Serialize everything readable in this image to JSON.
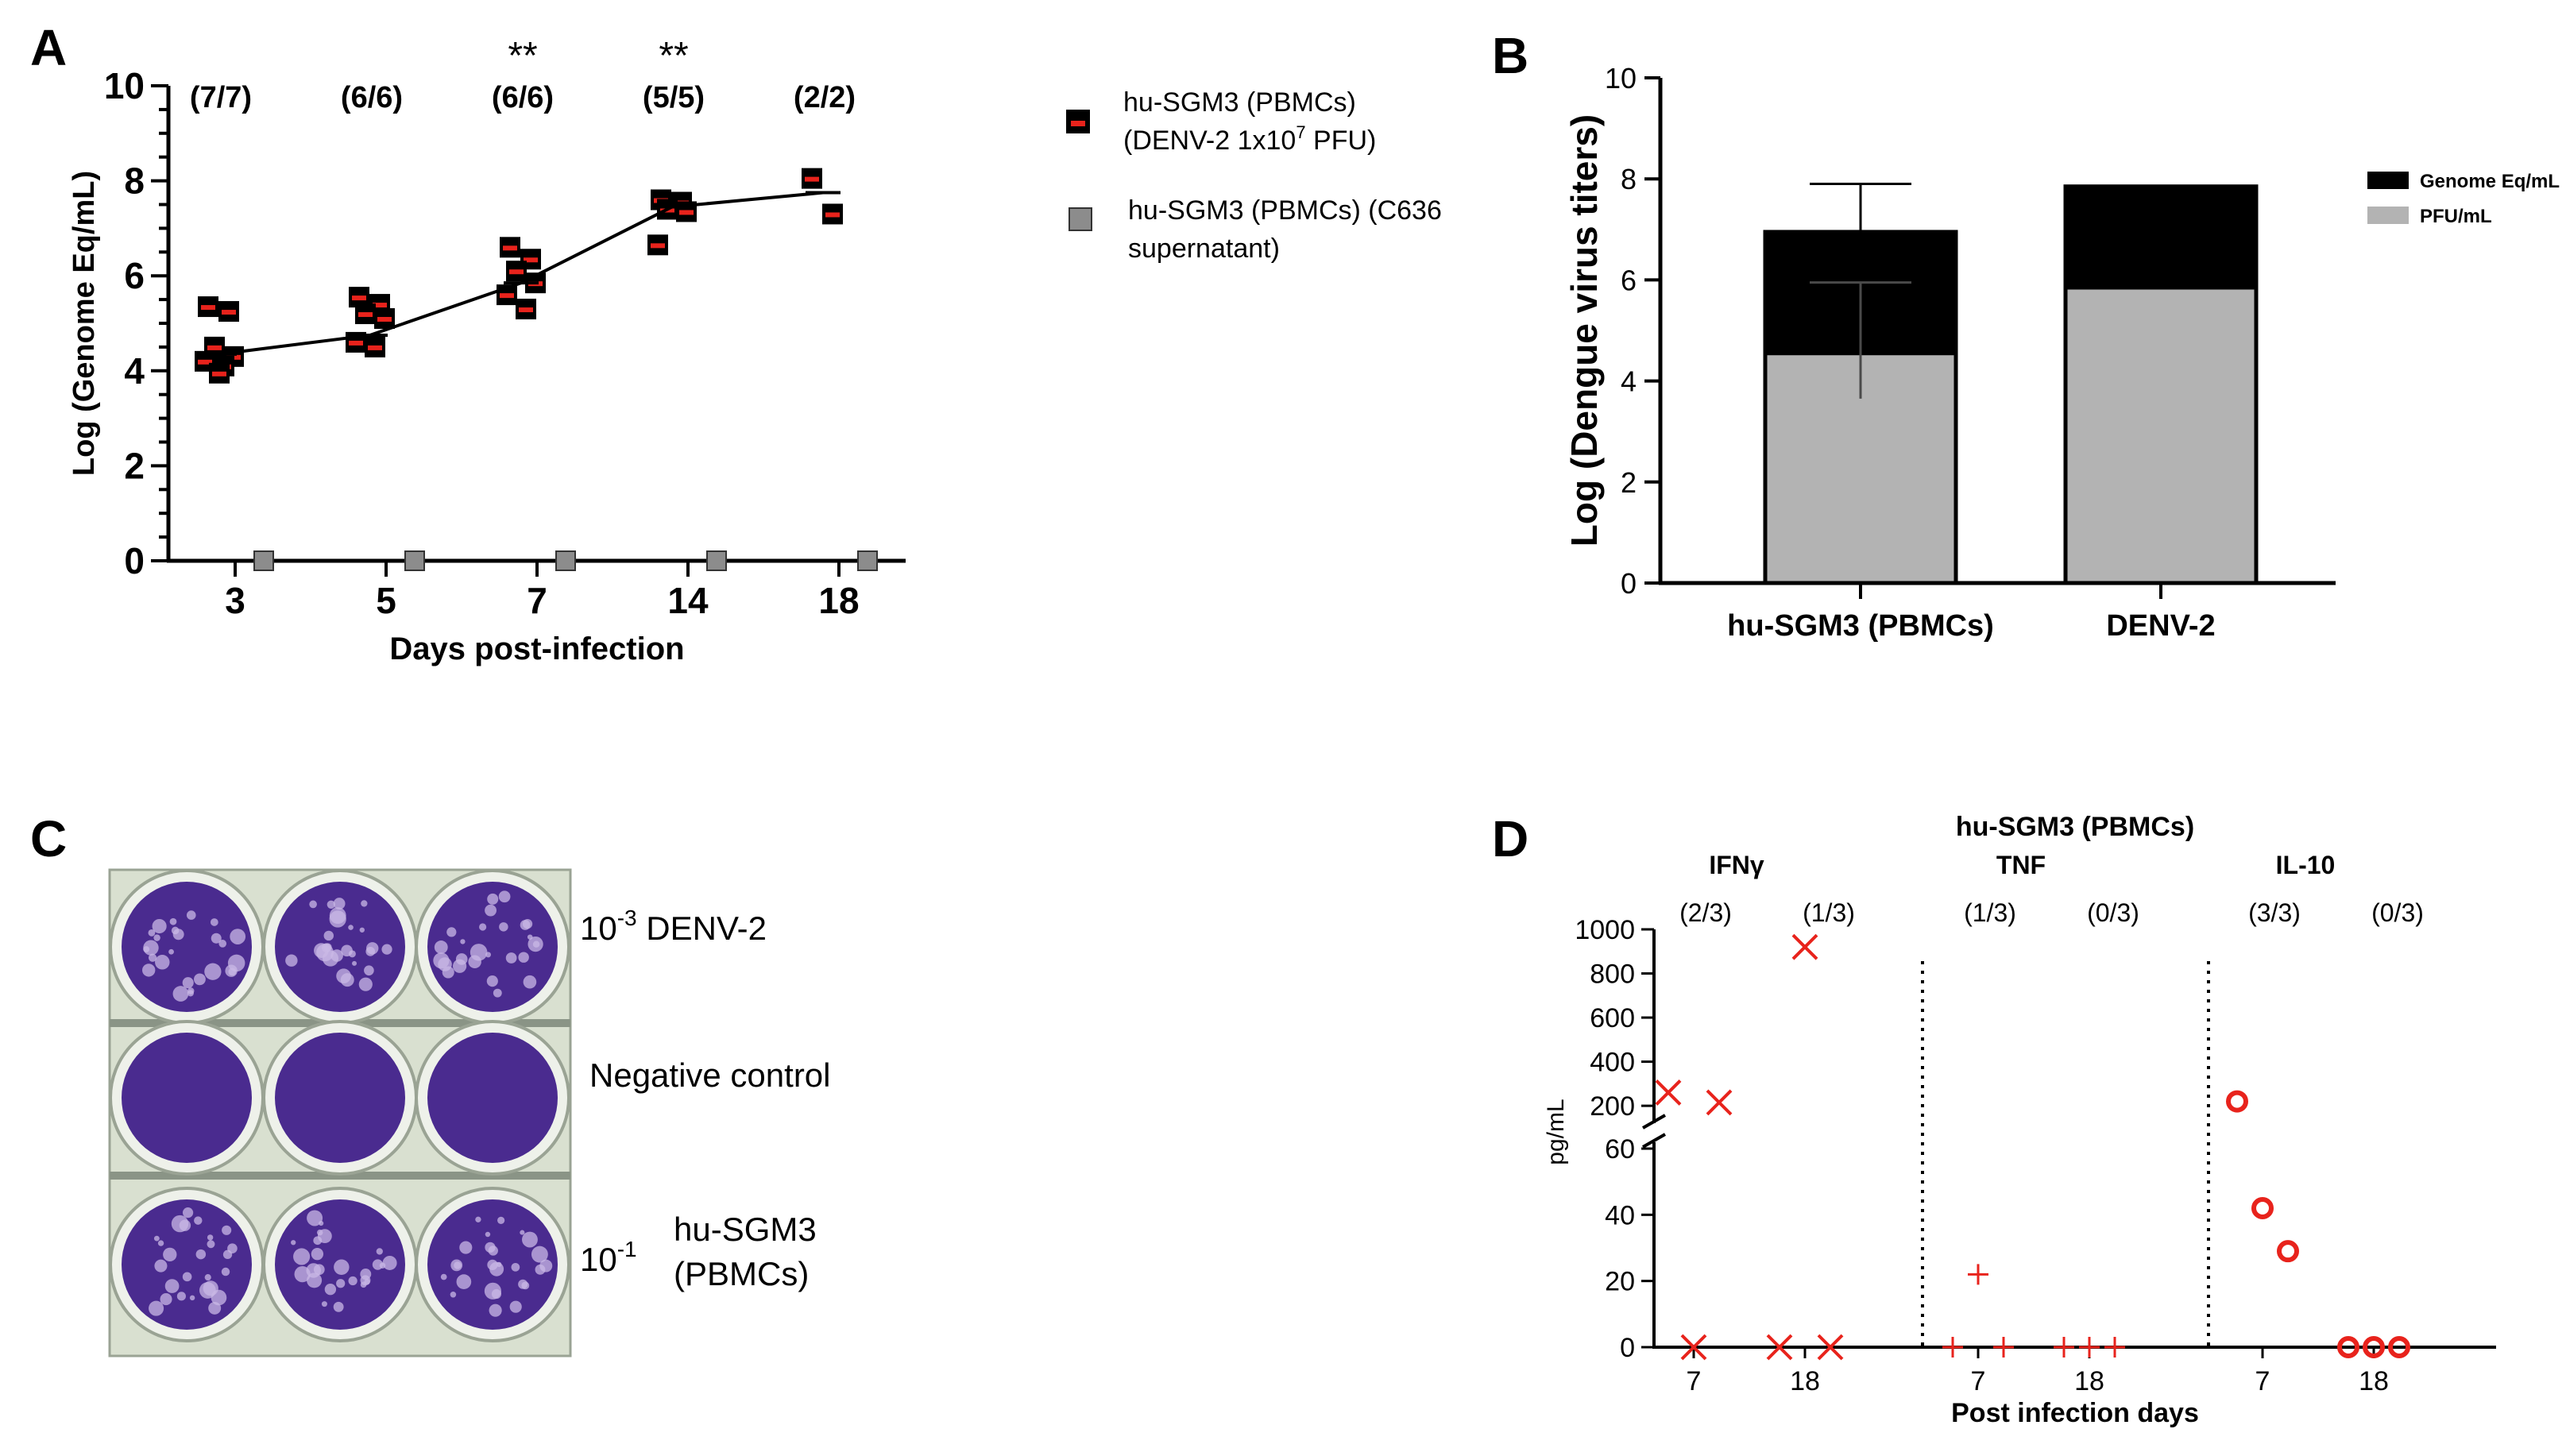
{
  "panels": {
    "A": {
      "letter": "A",
      "chart_data": {
        "type": "scatter",
        "title": "",
        "xlabel": "Days post-infection",
        "ylabel": "Log (Genome Eq/mL)",
        "ylim": [
          0,
          10
        ],
        "yticks": [
          "0",
          "2",
          "4",
          "6",
          "8",
          "10"
        ],
        "categories": [
          "3",
          "5",
          "7",
          "14",
          "18"
        ],
        "counts": [
          "(7/7)",
          "(6/6)",
          "(6/6)",
          "(5/5)",
          "(2/2)"
        ],
        "significance": [
          "",
          "",
          "**",
          "**",
          ""
        ],
        "series": [
          {
            "name": "hu-SGM3 (PBMCs) (DENV-2 1x10⁷ PFU)",
            "legend_lines": [
              "hu-SGM3 (PBMCs)",
              "(DENV-2 1x10",
              "7",
              " PFU)"
            ],
            "color": "#e8231c",
            "points": [
              [
                "3",
                5.35
              ],
              [
                "3",
                5.25
              ],
              [
                "3",
                4.5
              ],
              [
                "3",
                4.3
              ],
              [
                "3",
                4.2
              ],
              [
                "3",
                4.1
              ],
              [
                "3",
                3.95
              ],
              [
                "5",
                5.55
              ],
              [
                "5",
                5.4
              ],
              [
                "5",
                5.2
              ],
              [
                "5",
                5.1
              ],
              [
                "5",
                4.6
              ],
              [
                "5",
                4.5
              ],
              [
                "7",
                6.6
              ],
              [
                "7",
                6.35
              ],
              [
                "7",
                6.1
              ],
              [
                "7",
                5.85
              ],
              [
                "7",
                5.6
              ],
              [
                "7",
                5.3
              ],
              [
                "14",
                7.6
              ],
              [
                "14",
                7.55
              ],
              [
                "14",
                7.4
              ],
              [
                "14",
                7.35
              ],
              [
                "14",
                6.65
              ],
              [
                "18",
                8.05
              ],
              [
                "18",
                7.3
              ]
            ],
            "mean": [
              4.35,
              4.75,
              5.85,
              7.45,
              7.75
            ]
          },
          {
            "name": "hu-SGM3 (PBMCs) (C636 supernatant)",
            "legend_lines": [
              "hu-SGM3 (PBMCs) (C636",
              "supernatant)"
            ],
            "color": "#8c8c8c",
            "points": [
              [
                "3",
                0
              ],
              [
                "5",
                0
              ],
              [
                "7",
                0
              ],
              [
                "14",
                0
              ],
              [
                "18",
                0
              ]
            ]
          }
        ]
      }
    },
    "B": {
      "letter": "B",
      "chart_data": {
        "type": "bar",
        "stacked": true,
        "title": "",
        "xlabel": "",
        "ylabel": "Log (Dengue virus titers)",
        "ylim": [
          0,
          10
        ],
        "yticks": [
          "0",
          "2",
          "4",
          "6",
          "8",
          "10"
        ],
        "categories": [
          "hu-SGM3 (PBMCs)",
          "DENV-2"
        ],
        "series": [
          {
            "name": "PFU/mL",
            "color": "#b3b3b3",
            "values": [
              4.55,
              5.85
            ],
            "error_minus": [
              0.9,
              0
            ],
            "error_plus": [
              1.4,
              0
            ]
          },
          {
            "name": "Genome Eq/mL",
            "color": "#000000",
            "values": [
              2.4,
              2.0
            ],
            "error_plus": [
              0.95,
              0
            ]
          }
        ],
        "legend": [
          "Genome Eq/mL",
          "PFU/mL"
        ],
        "legend_position": "top-right"
      }
    },
    "C": {
      "letter": "C",
      "rows": [
        {
          "label_base": "10",
          "label_exp": "-3",
          "label_text": " DENV-2"
        },
        {
          "label_text": "Negative control"
        },
        {
          "label_base": "10",
          "label_exp": "-1",
          "label_text_lines": [
            "hu-SGM3",
            "(PBMCs)"
          ]
        }
      ],
      "well_color": "#4a2b8f",
      "plaque_color": "#c9b8e6"
    },
    "D": {
      "letter": "D",
      "chart_data": {
        "type": "scatter",
        "title": "hu-SGM3 (PBMCs)",
        "xlabel": "Post infection days",
        "ylabel": "pg/mL",
        "y_lower_ticks": [
          "0",
          "20",
          "40",
          "60"
        ],
        "y_upper_ticks": [
          "200",
          "400",
          "600",
          "800",
          "1000"
        ],
        "y_lower_range": [
          0,
          60
        ],
        "y_upper_range": [
          150,
          1000
        ],
        "groups": [
          {
            "name": "IFNγ",
            "marker": "x",
            "days": [
              "7",
              "18"
            ],
            "counts": [
              "(2/3)",
              "(1/3)"
            ],
            "values": {
              "7": [
                260,
                0,
                215
              ],
              "18": [
                0,
                920,
                0
              ]
            }
          },
          {
            "name": "TNF",
            "marker": "+",
            "days": [
              "7",
              "18"
            ],
            "counts": [
              "(1/3)",
              "(0/3)"
            ],
            "values": {
              "7": [
                0,
                22,
                0
              ],
              "18": [
                0,
                0,
                0
              ]
            }
          },
          {
            "name": "IL-10",
            "marker": "o",
            "days": [
              "7",
              "18"
            ],
            "counts": [
              "(3/3)",
              "(0/3)"
            ],
            "values": {
              "7": [
                220,
                42,
                29
              ],
              "18": [
                0,
                0,
                0
              ]
            }
          }
        ],
        "color": "#e8231c"
      }
    }
  }
}
